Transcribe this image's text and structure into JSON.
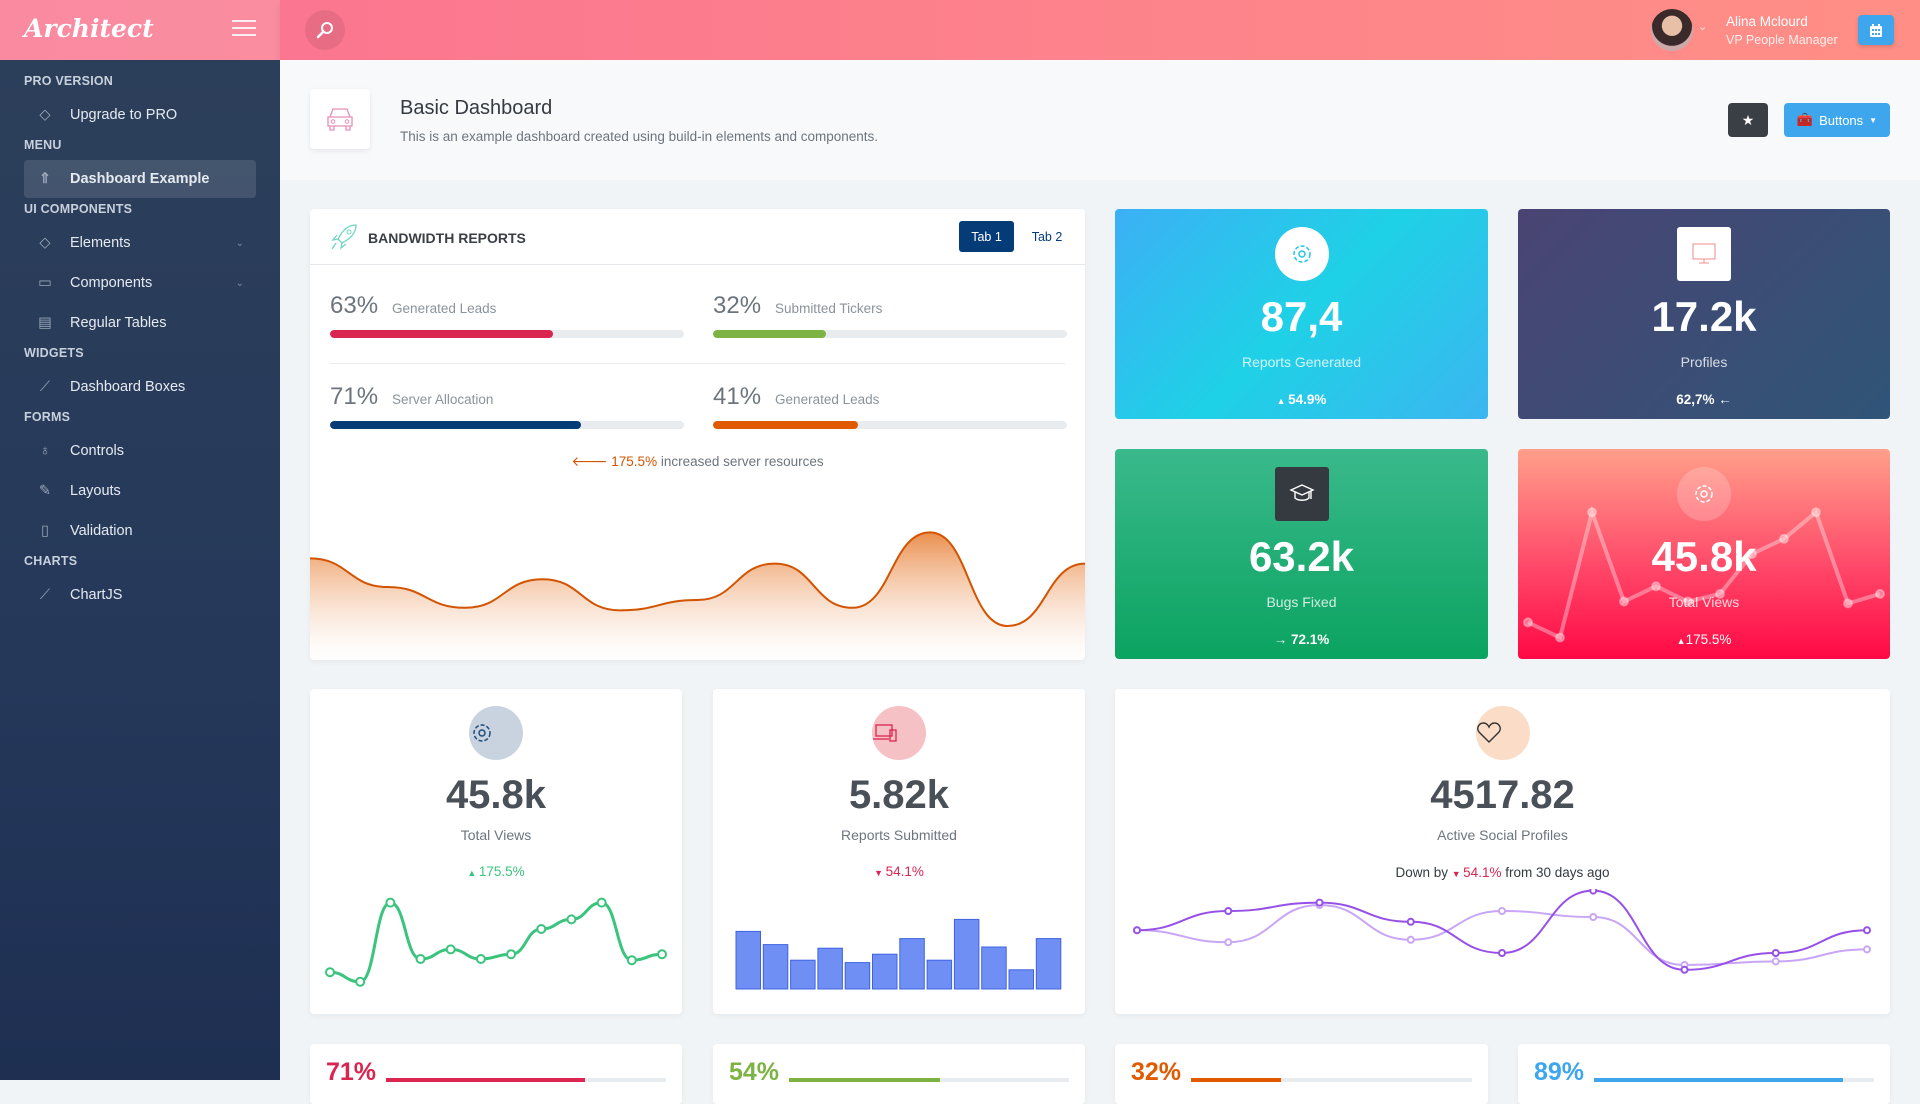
{
  "header": {
    "logo": "Architect",
    "user": {
      "name": "Alina Mclourd",
      "role": "VP People Manager"
    }
  },
  "sidebar": {
    "sections": [
      {
        "title": "PRO VERSION",
        "items": [
          {
            "label": "Upgrade to PRO",
            "icon": "diamond-icon"
          }
        ]
      },
      {
        "title": "MENU",
        "items": [
          {
            "label": "Dashboard Example",
            "icon": "rocket-icon",
            "active": true
          }
        ]
      },
      {
        "title": "UI COMPONENTS",
        "items": [
          {
            "label": "Elements",
            "icon": "diamond-icon",
            "expandable": true
          },
          {
            "label": "Components",
            "icon": "car-icon",
            "expandable": true
          },
          {
            "label": "Regular Tables",
            "icon": "monitor-icon"
          }
        ]
      },
      {
        "title": "WIDGETS",
        "items": [
          {
            "label": "Dashboard Boxes",
            "icon": "graph-icon"
          }
        ]
      },
      {
        "title": "FORMS",
        "items": [
          {
            "label": "Controls",
            "icon": "light-bulb-icon"
          },
          {
            "label": "Layouts",
            "icon": "eyedropper-icon"
          },
          {
            "label": "Validation",
            "icon": "usb-icon"
          }
        ]
      },
      {
        "title": "CHARTS",
        "items": [
          {
            "label": "ChartJS",
            "icon": "graph-icon"
          }
        ]
      }
    ]
  },
  "page": {
    "title": "Basic Dashboard",
    "subtitle": "This is an example dashboard created using build-in elements and components.",
    "buttons_label": "Buttons"
  },
  "bandwidth": {
    "title": "BANDWIDTH REPORTS",
    "tabs": [
      "Tab 1",
      "Tab 2"
    ],
    "progress": [
      {
        "pct": "63%",
        "value": 63,
        "label": "Generated Leads",
        "color": "#d92550"
      },
      {
        "pct": "32%",
        "value": 32,
        "label": "Submitted Tickers",
        "color": "#7cb342"
      },
      {
        "pct": "71%",
        "value": 71,
        "label": "Server Allocation",
        "color": "#053c78"
      },
      {
        "pct": "41%",
        "value": 41,
        "label": "Generated Leads",
        "color": "#e05a00"
      }
    ],
    "note_value": "175.5%",
    "note_text": " increased server resources",
    "chart": [
      62,
      40,
      24,
      46,
      22,
      30,
      58,
      24,
      82,
      10,
      58
    ]
  },
  "tiles": [
    {
      "num": "87,4",
      "label": "Reports Generated",
      "change": "54.9%",
      "arrow": "▲",
      "icon": "gear-icon"
    },
    {
      "num": "17.2k",
      "label": "Profiles",
      "change": "62,7%",
      "arrow": "←",
      "icon": "monitor-icon"
    },
    {
      "num": "63.2k",
      "label": "Bugs Fixed",
      "change": "72.1%",
      "arrow": "→",
      "icon": "graduation-cap-icon"
    },
    {
      "num": "45.8k",
      "label": "Total Views",
      "change": "175.5%",
      "arrow": "▲",
      "icon": "gear-icon"
    }
  ],
  "widgets": [
    {
      "num": "45.8k",
      "label": "Total Views",
      "change": "175.5%",
      "trend": "up",
      "color": "#3ac47d",
      "chart": [
        14,
        6,
        72,
        25,
        33,
        25,
        29,
        50,
        58,
        72,
        24,
        29
      ]
    },
    {
      "num": "5.82k",
      "label": "Reports Submitted",
      "change": "54.1%",
      "trend": "down",
      "color": "#d92550",
      "bars": [
        48,
        37,
        24,
        34,
        22,
        29,
        42,
        24,
        58,
        35,
        16,
        42
      ]
    },
    {
      "num": "4517.82",
      "label": "Active Social Profiles",
      "prefix": "Down by ",
      "change": "54.1%",
      "suffix": " from 30 days ago",
      "color": "#d92550",
      "series": [
        [
          49,
          65,
          72,
          56,
          30,
          82,
          16,
          30,
          49
        ],
        [
          49,
          39,
          70,
          41,
          65,
          60,
          20,
          23,
          33
        ]
      ]
    }
  ],
  "bottom": [
    {
      "pct": "71%",
      "value": 71,
      "color": "#d92550"
    },
    {
      "pct": "54%",
      "value": 54,
      "color": "#7cb342"
    },
    {
      "pct": "32%",
      "value": 32,
      "color": "#e05a00"
    },
    {
      "pct": "89%",
      "value": 89,
      "color": "#3ea6ec"
    }
  ]
}
